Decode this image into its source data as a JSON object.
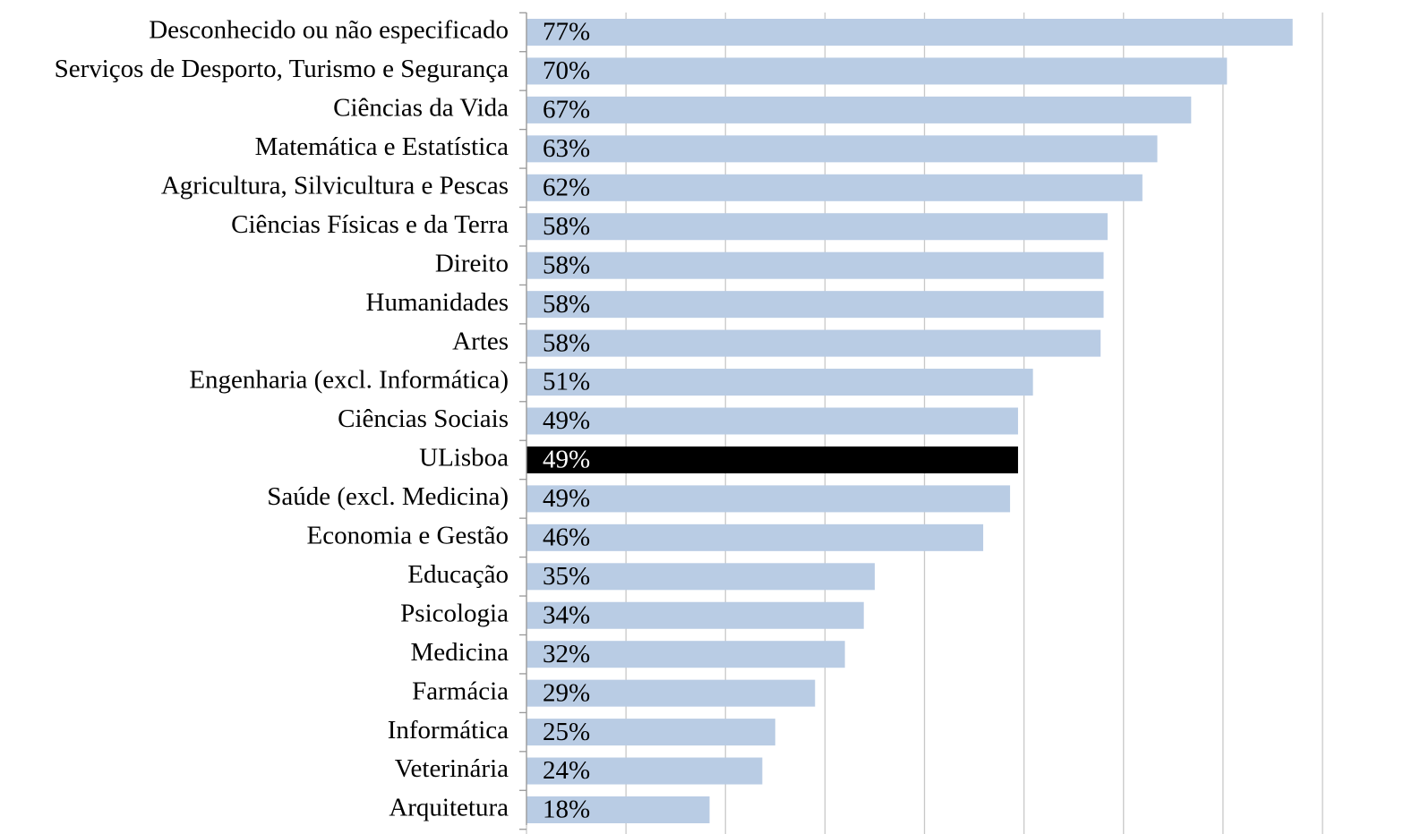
{
  "chart_data": {
    "type": "barh",
    "categories": [
      "Desconhecido ou não especificado",
      "Serviços de Desporto, Turismo e Segurança",
      "Ciências da Vida",
      "Matemática e Estatística",
      "Agricultura, Silvicultura e Pescas",
      "Ciências Físicas e da Terra",
      "Direito",
      "Humanidades",
      "Artes",
      "Engenharia (excl. Informática)",
      "Ciências Sociais",
      "ULisboa",
      "Saúde (excl. Medicina)",
      "Economia e Gestão",
      "Educação",
      "Psicologia",
      "Medicina",
      "Farmácia",
      "Informática",
      "Veterinária",
      "Arquitetura"
    ],
    "values": [
      77,
      70.4,
      66.8,
      63.4,
      61.9,
      58.4,
      58.0,
      58.0,
      57.7,
      50.9,
      49.4,
      49.4,
      48.6,
      45.9,
      35.0,
      33.9,
      32.0,
      29.0,
      25.0,
      23.7,
      18.4
    ],
    "value_labels": [
      "77%",
      "70%",
      "67%",
      "63%",
      "62%",
      "58%",
      "58%",
      "58%",
      "58%",
      "51%",
      "49%",
      "49%",
      "49%",
      "46%",
      "35%",
      "34%",
      "32%",
      "29%",
      "25%",
      "24%",
      "18%"
    ],
    "colors": [
      "#b9cce4",
      "#b9cce4",
      "#b9cce4",
      "#b9cce4",
      "#b9cce4",
      "#b9cce4",
      "#b9cce4",
      "#b9cce4",
      "#b9cce4",
      "#b9cce4",
      "#b9cce4",
      "#000000",
      "#b9cce4",
      "#b9cce4",
      "#b9cce4",
      "#b9cce4",
      "#b9cce4",
      "#b9cce4",
      "#b9cce4",
      "#b9cce4",
      "#b9cce4"
    ],
    "xlim": [
      0,
      80
    ],
    "xticks": [
      0,
      10,
      20,
      30,
      40,
      50,
      60,
      70,
      80
    ],
    "grid": true
  }
}
